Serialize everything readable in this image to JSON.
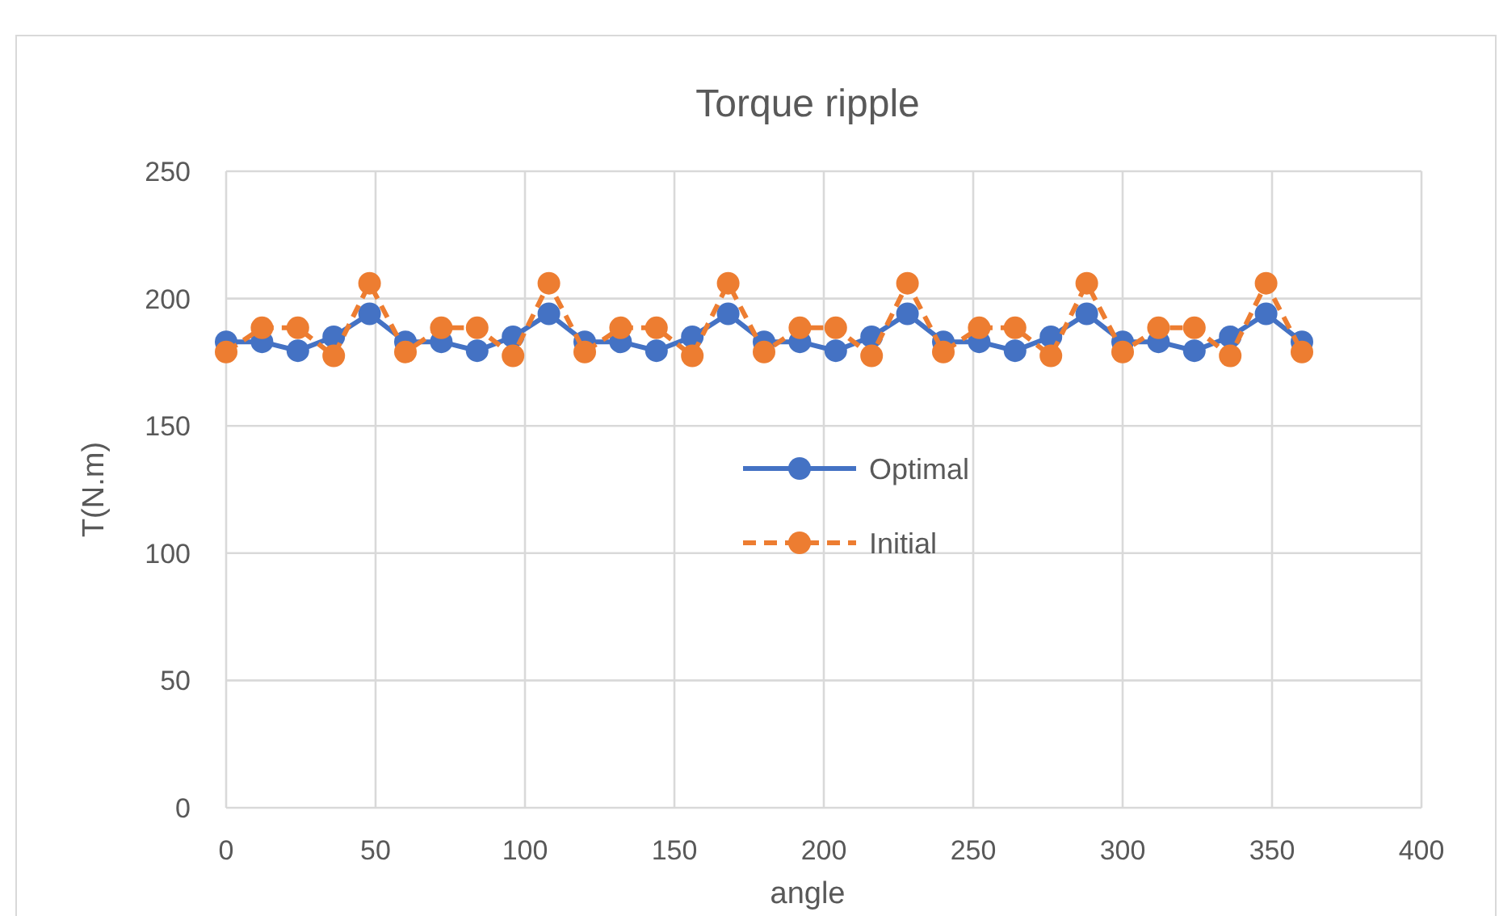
{
  "chart_data": {
    "type": "line",
    "title": "Torque ripple",
    "xlabel": "angle",
    "ylabel": "T(N.m)",
    "x": [
      0,
      12,
      24,
      36,
      48,
      60,
      72,
      84,
      96,
      108,
      120,
      132,
      144,
      156,
      168,
      180,
      192,
      204,
      216,
      228,
      240,
      252,
      264,
      276,
      288,
      300,
      312,
      324,
      336,
      348,
      360
    ],
    "series": [
      {
        "name": "Optimal",
        "color": "#4472c4",
        "line_style": "solid",
        "values": [
          183,
          183,
          179.5,
          185,
          194,
          183,
          183,
          179.5,
          185,
          194,
          183,
          183,
          179.5,
          185,
          194,
          183,
          183,
          179.5,
          185,
          194,
          183,
          183,
          179.5,
          185,
          194,
          183,
          183,
          179.5,
          185,
          194,
          183
        ]
      },
      {
        "name": "Initial",
        "color": "#ed7d31",
        "line_style": "dashed",
        "values": [
          179,
          188.5,
          188.5,
          177.5,
          206,
          179,
          188.5,
          188.5,
          177.5,
          206,
          179,
          188.5,
          188.5,
          177.5,
          206,
          179,
          188.5,
          188.5,
          177.5,
          206,
          179,
          188.5,
          188.5,
          177.5,
          206,
          179,
          188.5,
          188.5,
          177.5,
          206,
          179
        ]
      }
    ],
    "xlim": [
      0,
      400
    ],
    "xticks": [
      0,
      50,
      100,
      150,
      200,
      250,
      300,
      350,
      400
    ],
    "ylim": [
      0,
      250
    ],
    "yticks": [
      0,
      50,
      100,
      150,
      200,
      250
    ],
    "grid": true,
    "legend": "center",
    "marker": "circle"
  }
}
